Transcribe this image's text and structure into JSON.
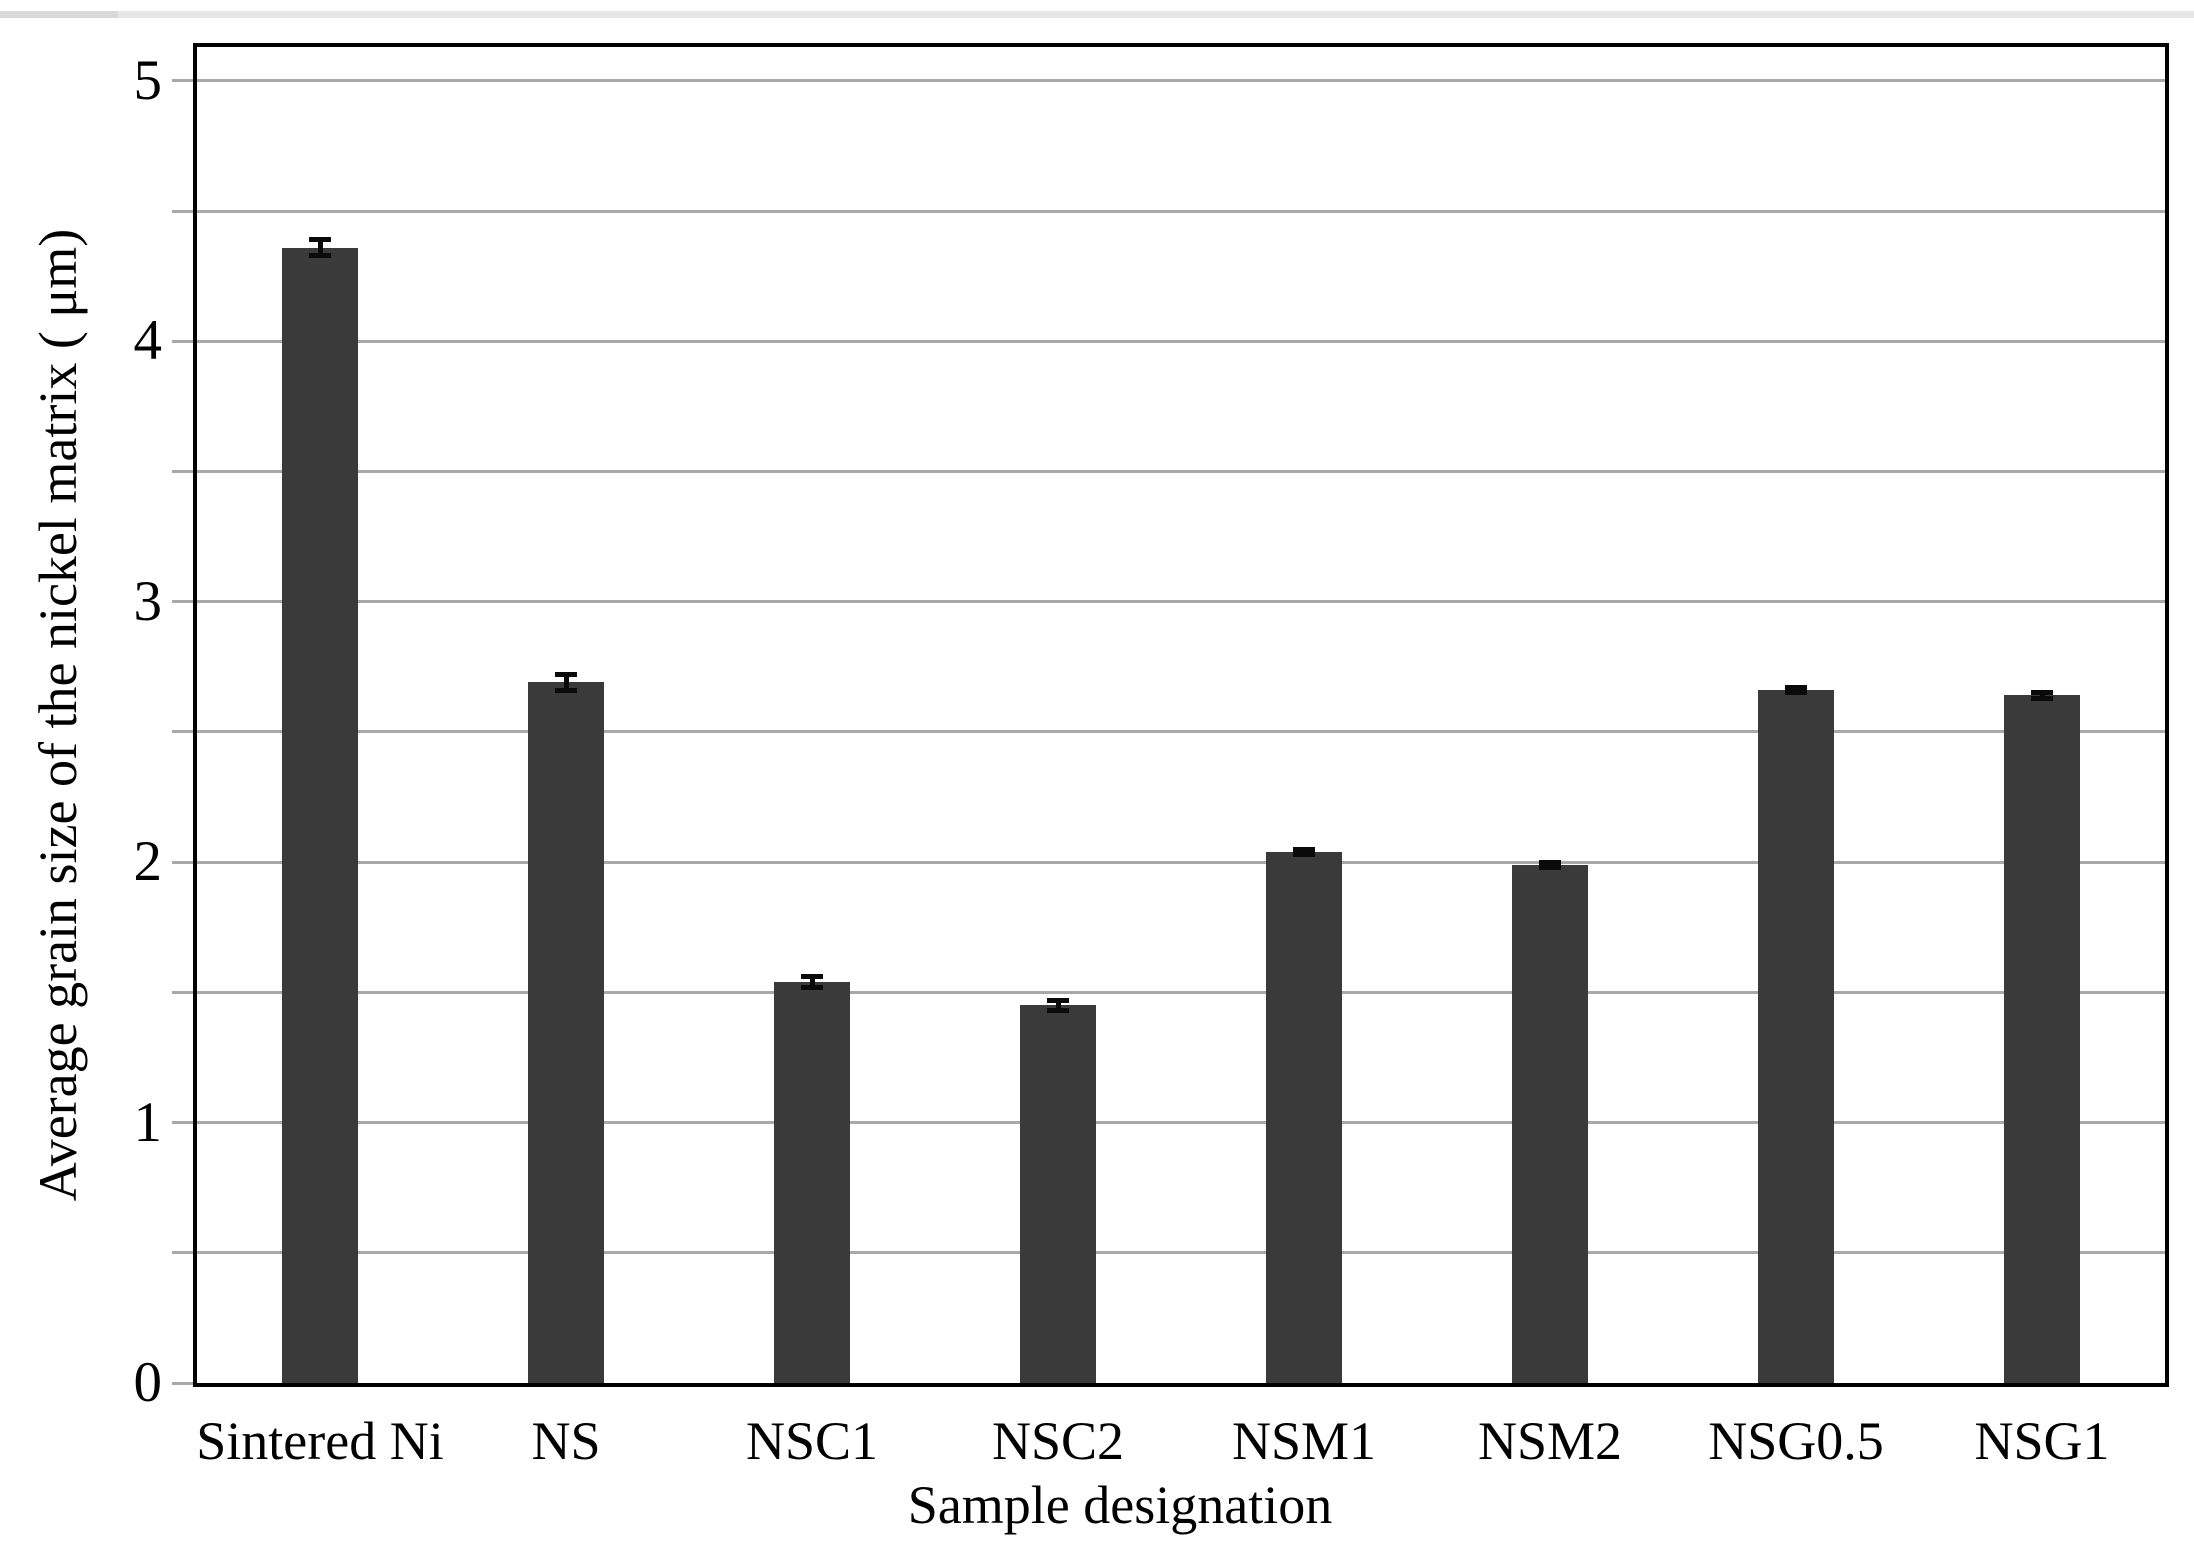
{
  "figure": {
    "kind": "scanned bar chart figure",
    "background_color": "#ffffff",
    "top_strip_color": "#e7e7e7",
    "top_strip_left_color": "#d8d8d8"
  },
  "chart_data": {
    "type": "bar",
    "title": "",
    "xlabel": "Sample designation",
    "ylabel": "Average grain size of the nickel matrix ( μm)",
    "categories": [
      "Sintered Ni",
      "NS",
      "NSC1",
      "NSC2",
      "NSM1",
      "NSM2",
      "NSG0.5",
      "NSG1"
    ],
    "values": [
      4.36,
      2.69,
      1.54,
      1.45,
      2.04,
      1.99,
      2.66,
      2.64
    ],
    "errors": [
      0.04,
      0.04,
      0.03,
      0.03,
      0.02,
      0.02,
      0.02,
      0.02
    ],
    "yticks": [
      0,
      1,
      2,
      3,
      4,
      5
    ],
    "ytick_labels": [
      "0",
      "1",
      "2",
      "3",
      "4",
      "5"
    ],
    "minor_grid_step": 0.5,
    "ylim": [
      0,
      5.13
    ],
    "grid": true,
    "legend": false,
    "bar_color": "#3a3a3a",
    "gridline_color": "#a8a8a8",
    "axis_color": "#000000",
    "error_bar_color": "#0a0a0a"
  }
}
